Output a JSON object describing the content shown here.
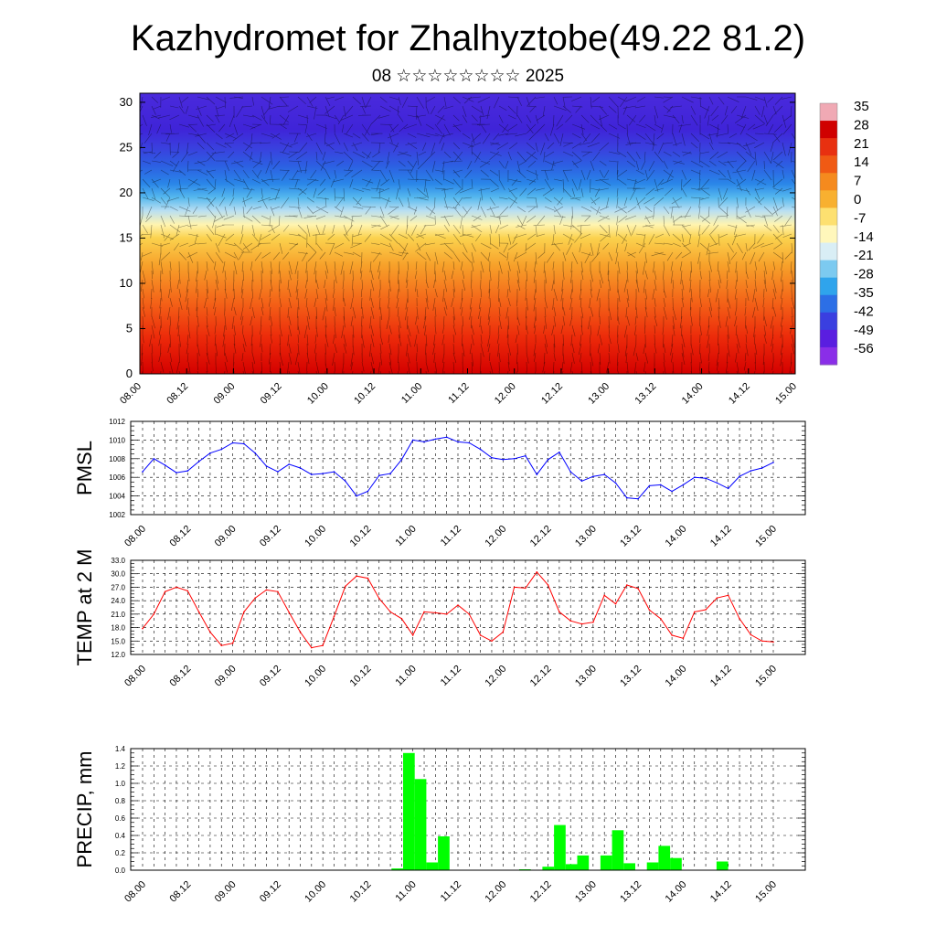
{
  "title": "Kazhydromet for Zhalhyztobe(49.22 81.2)",
  "subtitle": "08 ☆☆☆☆☆☆☆☆ 2025",
  "chart_data": [
    {
      "type": "heatmap",
      "ylim": [
        0,
        31
      ],
      "yticks": [
        0,
        5,
        10,
        15,
        20,
        25,
        30
      ],
      "xticks": [
        "08.00",
        "08.12",
        "09.00",
        "09.12",
        "10.00",
        "10.12",
        "11.00",
        "11.12",
        "12.00",
        "12.12",
        "13.00",
        "13.12",
        "14.00",
        "14.12",
        "15.00"
      ],
      "colorbar_labels": [
        "35",
        "28",
        "21",
        "14",
        "7",
        "0",
        "-7",
        "-14",
        "-21",
        "-28",
        "-35",
        "-42",
        "-49",
        "-56"
      ],
      "colorbar_colors": [
        "#f0a9b4",
        "#d00000",
        "#e83010",
        "#f05a14",
        "#f58a1e",
        "#f8b030",
        "#fde070",
        "#fff7bb",
        "#d9eef5",
        "#7ccaf0",
        "#2fa4ec",
        "#2c6fe6",
        "#3a3fe0",
        "#5a1ee0",
        "#8a2ee8"
      ],
      "profile": [
        {
          "level": 0,
          "color": "#d40000"
        },
        {
          "level": 4,
          "color": "#ec2a0a"
        },
        {
          "level": 8,
          "color": "#f46418"
        },
        {
          "level": 12,
          "color": "#f7a12a"
        },
        {
          "level": 15,
          "color": "#fbd24e"
        },
        {
          "level": 16.5,
          "color": "#fff4b0"
        },
        {
          "level": 18,
          "color": "#b9dff2"
        },
        {
          "level": 19.5,
          "color": "#55b8ee"
        },
        {
          "level": 21,
          "color": "#2a86e8"
        },
        {
          "level": 23,
          "color": "#2c5fe2"
        },
        {
          "level": 25,
          "color": "#3a3fde"
        },
        {
          "level": 27,
          "color": "#3f24d8"
        },
        {
          "level": 31,
          "color": "#4a2adc"
        }
      ]
    },
    {
      "type": "line",
      "ylabel": "PMSL",
      "ylim": [
        1002,
        1012
      ],
      "yticks": [
        "1002",
        "1004",
        "1006",
        "1008",
        "1010",
        "1012"
      ],
      "color": "#0000ff",
      "xticks": [
        "08.00",
        "08.12",
        "09.00",
        "09.12",
        "10.00",
        "10.12",
        "11.00",
        "11.12",
        "12.00",
        "12.12",
        "13.00",
        "13.12",
        "14.00",
        "14.12",
        "15.00"
      ],
      "values": [
        1006.6,
        1008.0,
        1007.3,
        1006.5,
        1006.7,
        1007.7,
        1008.6,
        1009.0,
        1009.7,
        1009.6,
        1008.6,
        1007.2,
        1006.6,
        1007.4,
        1007.0,
        1006.3,
        1006.4,
        1006.6,
        1005.6,
        1004.0,
        1004.5,
        1006.2,
        1006.4,
        1007.9,
        1010.0,
        1009.8,
        1010.1,
        1010.3,
        1009.8,
        1009.7,
        1009.0,
        1008.1,
        1007.9,
        1008.0,
        1008.3,
        1006.3,
        1007.9,
        1008.7,
        1006.6,
        1005.6,
        1006.1,
        1006.3,
        1005.4,
        1003.8,
        1003.7,
        1005.1,
        1005.2,
        1004.5,
        1005.2,
        1006.0,
        1005.9,
        1005.4,
        1004.8,
        1006.1,
        1006.7,
        1007.0,
        1007.6
      ]
    },
    {
      "type": "line",
      "ylabel": "TEMP at 2 M",
      "ylim": [
        12,
        33
      ],
      "yticks": [
        "12.0",
        "15.0",
        "18.0",
        "21.0",
        "24.0",
        "27.0",
        "30.0",
        "33.0"
      ],
      "color": "#ff0000",
      "xticks": [
        "08.00",
        "08.12",
        "09.00",
        "09.12",
        "10.00",
        "10.12",
        "11.00",
        "11.12",
        "12.00",
        "12.12",
        "13.00",
        "13.12",
        "14.00",
        "14.12",
        "15.00"
      ],
      "values": [
        17.8,
        21.0,
        26.0,
        27.0,
        26.2,
        21.5,
        17.0,
        14.0,
        14.5,
        21.5,
        24.6,
        26.4,
        26.0,
        21.4,
        17.0,
        13.5,
        14.0,
        20.5,
        27.2,
        29.5,
        29.0,
        24.5,
        21.5,
        20.0,
        16.3,
        21.5,
        21.3,
        21.0,
        23.0,
        21.0,
        16.3,
        15.0,
        17.0,
        27.0,
        26.8,
        30.4,
        27.5,
        21.5,
        19.5,
        18.8,
        19.2,
        25.2,
        23.3,
        27.5,
        26.7,
        21.9,
        20.0,
        16.3,
        15.6,
        21.5,
        22.0,
        24.6,
        25.2,
        20.0,
        16.4,
        15.0,
        14.8
      ]
    },
    {
      "type": "bar",
      "ylabel": "PRECIP, mm",
      "ylim": [
        0,
        1.4
      ],
      "yticks": [
        "0.0",
        "0.2",
        "0.4",
        "0.6",
        "0.8",
        "1.0",
        "1.2",
        "1.4"
      ],
      "color": "#00ff00",
      "xticks": [
        "08.00",
        "08.12",
        "09.00",
        "09.12",
        "10.00",
        "10.12",
        "11.00",
        "11.12",
        "12.00",
        "12.12",
        "13.00",
        "13.12",
        "14.00",
        "14.12",
        "15.00"
      ],
      "values": [
        0,
        0,
        0,
        0,
        0,
        0,
        0,
        0,
        0,
        0,
        0,
        0,
        0,
        0,
        0,
        0,
        0,
        0,
        0,
        0,
        0,
        0,
        0,
        0.02,
        1.35,
        1.05,
        0.09,
        0.39,
        0,
        0,
        0,
        0,
        0,
        0,
        0.01,
        0,
        0.04,
        0.52,
        0.07,
        0.17,
        0,
        0.17,
        0.46,
        0.08,
        0,
        0.09,
        0.28,
        0.14,
        0,
        0,
        0,
        0.1,
        0,
        0,
        0,
        0
      ]
    }
  ]
}
